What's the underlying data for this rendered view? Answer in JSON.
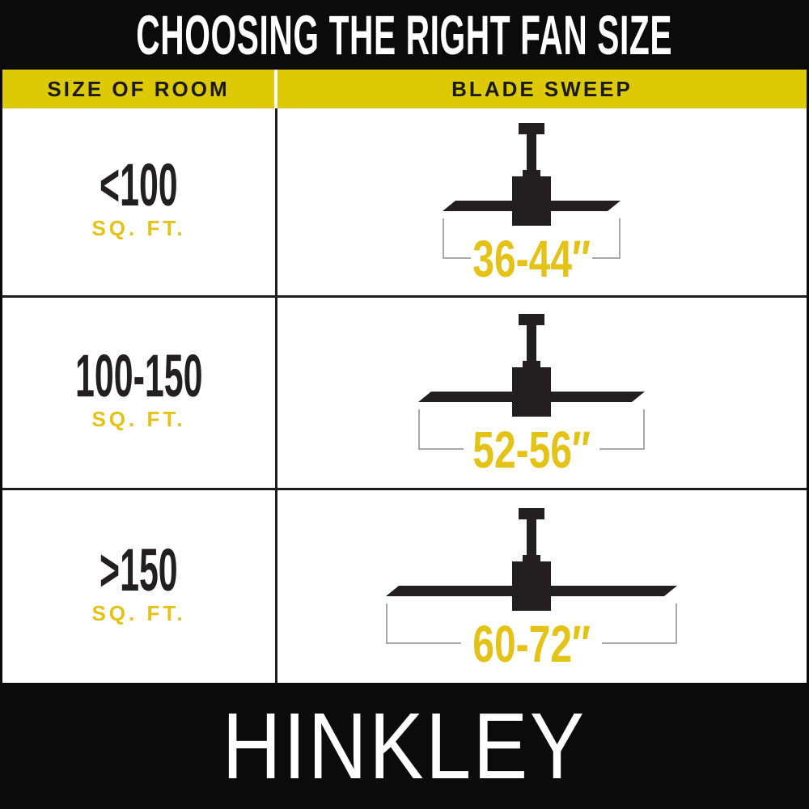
{
  "title": "CHOOSING THE RIGHT FAN SIZE",
  "columns": {
    "room": "SIZE OF ROOM",
    "sweep": "BLADE SWEEP"
  },
  "rows": [
    {
      "room_size": "<100",
      "room_unit": "SQ. FT.",
      "sweep_label": "36-44″",
      "sweep_min_in": 36,
      "sweep_max_in": 44,
      "icon": "ceiling-fan-icon"
    },
    {
      "room_size": "100-150",
      "room_unit": "SQ. FT.",
      "sweep_label": "52-56″",
      "sweep_min_in": 52,
      "sweep_max_in": 56,
      "icon": "ceiling-fan-icon"
    },
    {
      "room_size": ">150",
      "room_unit": "SQ. FT.",
      "sweep_label": "60-72″",
      "sweep_min_in": 60,
      "sweep_max_in": 72,
      "icon": "ceiling-fan-icon"
    }
  ],
  "brand": "HINKLEY",
  "colors": {
    "black": "#0b0b0b",
    "white": "#ffffff",
    "yellow_band": "#ddc906",
    "gold_text": "#e4c316",
    "ink": "#231f20",
    "bracket_gray": "#a9a9a9",
    "border": "#1c1c1c"
  },
  "chart_data": {
    "type": "table",
    "title": "CHOOSING THE RIGHT FAN SIZE",
    "columns": [
      "SIZE OF ROOM",
      "BLADE SWEEP"
    ],
    "rows": [
      {
        "size_of_room": "<100 SQ. FT.",
        "blade_sweep": "36-44″",
        "sweep_range_in": [
          36,
          44
        ]
      },
      {
        "size_of_room": "100-150 SQ. FT.",
        "blade_sweep": "52-56″",
        "sweep_range_in": [
          52,
          56
        ]
      },
      {
        "size_of_room": ">150 SQ. FT.",
        "blade_sweep": "60-72″",
        "sweep_range_in": [
          60,
          72
        ]
      }
    ],
    "footer_brand": "HINKLEY"
  }
}
